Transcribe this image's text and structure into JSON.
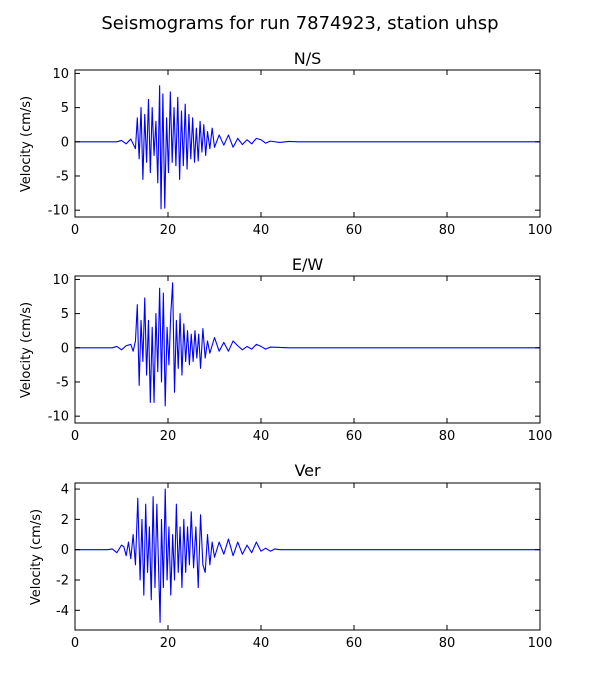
{
  "figure": {
    "title": "Seismograms for run 7874923, station uhsp",
    "line_color": "#0000ff"
  },
  "chart_data": [
    {
      "type": "line",
      "title": "N/S",
      "xlabel": "",
      "ylabel": "Velocity (cm/s)",
      "xlim": [
        0,
        100
      ],
      "ylim": [
        -11,
        10.5
      ],
      "xticks": [
        0,
        20,
        40,
        60,
        80,
        100
      ],
      "yticks": [
        -10,
        -5,
        0,
        5,
        10
      ],
      "grid": false,
      "x": [
        0,
        9,
        10,
        11,
        12,
        13,
        13.4,
        13.8,
        14.2,
        14.6,
        15,
        15.4,
        15.8,
        16.2,
        16.6,
        17,
        17.4,
        17.8,
        18.2,
        18.5,
        18.9,
        19.3,
        19.7,
        20.1,
        20.5,
        20.9,
        21.3,
        21.7,
        22.1,
        22.5,
        22.9,
        23.3,
        23.7,
        24.1,
        24.5,
        24.9,
        25.3,
        25.7,
        26.1,
        26.5,
        26.9,
        27.3,
        27.7,
        28.1,
        28.5,
        29,
        29.5,
        30,
        31,
        32,
        33,
        34,
        35,
        36,
        37,
        38,
        39,
        40,
        41,
        42,
        44,
        46,
        48,
        100
      ],
      "y": [
        0,
        0,
        0.2,
        -0.3,
        0.4,
        -1.0,
        3.5,
        -2.5,
        5.0,
        -5.5,
        4.0,
        -3.0,
        6.2,
        -4.5,
        5.0,
        -2.0,
        3.0,
        -6.0,
        8.2,
        -9.8,
        7.0,
        -9.7,
        3.5,
        -4.5,
        7.3,
        -3.0,
        5.0,
        -3.5,
        6.5,
        -5.5,
        4.5,
        -3.5,
        5.5,
        -4.0,
        4.0,
        -2.5,
        3.5,
        -3.0,
        2.0,
        -2.8,
        3.0,
        -1.5,
        2.5,
        -2.0,
        1.5,
        -1.0,
        2.0,
        -0.8,
        1.0,
        -0.5,
        1.0,
        -0.8,
        0.5,
        -0.4,
        0.3,
        -0.3,
        0.5,
        0.3,
        -0.2,
        0.1,
        -0.1,
        0.05,
        0,
        0
      ]
    },
    {
      "type": "line",
      "title": "E/W",
      "xlabel": "",
      "ylabel": "Velocity (cm/s)",
      "xlim": [
        0,
        100
      ],
      "ylim": [
        -11,
        10.5
      ],
      "xticks": [
        0,
        20,
        40,
        60,
        80,
        100
      ],
      "yticks": [
        -10,
        -5,
        0,
        5,
        10
      ],
      "grid": false,
      "x": [
        0,
        8,
        9,
        10,
        11,
        12,
        12.5,
        13,
        13.4,
        13.8,
        14.2,
        14.6,
        15,
        15.4,
        15.8,
        16.2,
        16.6,
        17,
        17.4,
        17.8,
        18.2,
        18.6,
        19,
        19.4,
        19.8,
        20.2,
        20.6,
        21,
        21.4,
        21.8,
        22.2,
        22.6,
        23,
        23.4,
        23.8,
        24.2,
        24.6,
        25,
        25.4,
        25.8,
        26.2,
        26.6,
        27,
        27.5,
        28,
        28.5,
        29,
        30,
        31,
        32,
        33,
        34,
        35,
        36,
        37,
        38,
        39,
        40,
        41,
        42,
        44,
        46,
        100
      ],
      "y": [
        0,
        0,
        0.2,
        -0.3,
        0.3,
        0.5,
        -0.5,
        1.0,
        6.3,
        -5.5,
        4.0,
        -2.0,
        7.3,
        -4.0,
        4.0,
        -8.0,
        3.0,
        -8.0,
        5.0,
        -3.5,
        8.7,
        -5.0,
        8.0,
        -8.5,
        3.0,
        -2.5,
        5.0,
        9.5,
        -6.5,
        4.0,
        -3.0,
        5.0,
        -4.0,
        3.5,
        -2.0,
        2.5,
        -2.5,
        2.0,
        -2.0,
        2.5,
        -1.5,
        2.0,
        -3.0,
        2.8,
        -1.5,
        1.0,
        -0.8,
        1.5,
        -0.5,
        0.8,
        -0.5,
        1.0,
        0.3,
        -0.3,
        0.2,
        -0.2,
        0.5,
        0.2,
        -0.2,
        0.1,
        0.05,
        0,
        0
      ]
    },
    {
      "type": "line",
      "title": "Ver",
      "xlabel": "",
      "ylabel": "Velocity (cm/s)",
      "xlim": [
        0,
        100
      ],
      "ylim": [
        -5.3,
        4.4
      ],
      "xticks": [
        0,
        20,
        40,
        60,
        80,
        100
      ],
      "yticks": [
        -4,
        -2,
        0,
        2,
        4
      ],
      "grid": false,
      "x": [
        0,
        7,
        8,
        9,
        10,
        10.5,
        11,
        11.5,
        12,
        12.5,
        13,
        13.5,
        14,
        14.4,
        14.8,
        15.2,
        15.6,
        16,
        16.4,
        16.8,
        17.2,
        17.6,
        18,
        18.3,
        18.6,
        19,
        19.4,
        19.8,
        20.2,
        20.6,
        21,
        21.4,
        21.8,
        22.2,
        22.6,
        23,
        23.4,
        23.8,
        24.2,
        24.6,
        25,
        25.5,
        26,
        26.5,
        27,
        27.5,
        28,
        28.5,
        29,
        29.5,
        30,
        31,
        32,
        33,
        34,
        35,
        36,
        37,
        38,
        39,
        40,
        41,
        42,
        43,
        44,
        46,
        48,
        100
      ],
      "y": [
        0,
        0,
        0.05,
        -0.2,
        0.3,
        0.2,
        -0.4,
        0.5,
        -0.6,
        1.0,
        -1.0,
        3.4,
        -2.0,
        2.0,
        -3.0,
        3.0,
        -1.5,
        1.5,
        -3.3,
        3.5,
        -2.5,
        3.0,
        -1.5,
        -4.8,
        2.0,
        -2.5,
        4.0,
        -2.0,
        1.5,
        -3.0,
        1.0,
        -2.0,
        3.0,
        -1.5,
        1.5,
        -2.5,
        2.0,
        -1.5,
        1.5,
        -1.0,
        2.5,
        -1.2,
        1.5,
        -2.5,
        2.3,
        -1.0,
        -1.5,
        1.0,
        -1.0,
        0.5,
        -0.5,
        0.5,
        -0.3,
        0.7,
        -0.4,
        0.5,
        -0.3,
        0.3,
        -0.2,
        0.5,
        -0.1,
        0.1,
        -0.1,
        0.05,
        0,
        0,
        0,
        0
      ]
    }
  ]
}
